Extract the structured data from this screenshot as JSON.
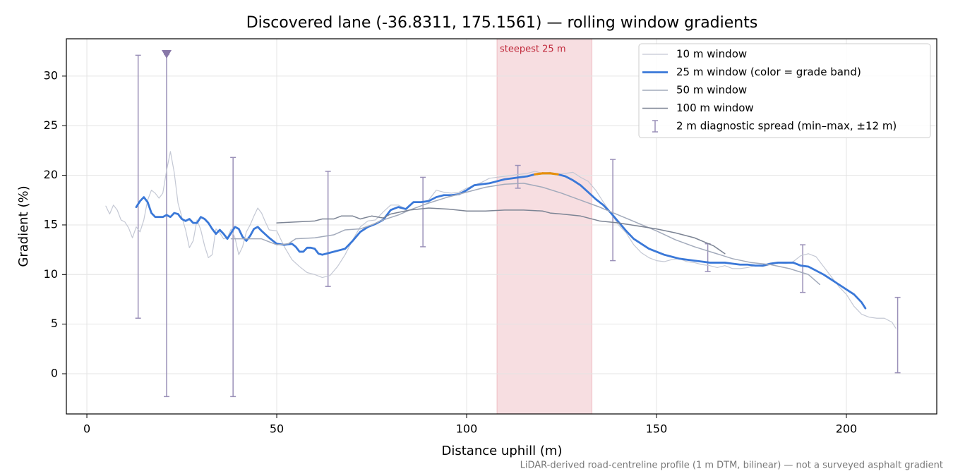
{
  "chart_data": {
    "type": "line",
    "title": "Discovered lane (-36.8311, 175.1561) — rolling window gradients",
    "x_label": "Distance uphill (m)",
    "y_label": "Gradient (%)",
    "footnote": "LiDAR-derived road-centreline profile (1 m DTM, bilinear) — not a surveyed asphalt gradient",
    "xlim": [
      -5.4,
      223.8
    ],
    "ylim": [
      -4.05,
      33.76
    ],
    "xticks": [
      0,
      50,
      100,
      150,
      200
    ],
    "yticks": [
      0,
      5,
      10,
      15,
      20,
      25,
      30
    ],
    "grid": true,
    "legend": "upper right",
    "highlight_span": {
      "label": "steepest 25 m",
      "x": [
        108,
        133
      ],
      "color": "#e8a0a8",
      "label_color": "#c0283a"
    },
    "series": [
      {
        "name": "10 m window",
        "color": "#c4c8d4",
        "width": 1.2,
        "x": [
          5,
          6,
          7,
          8,
          9,
          10,
          11,
          12,
          13,
          14,
          15,
          16,
          17,
          18,
          19,
          20,
          21,
          22,
          23,
          24,
          25,
          26,
          27,
          28,
          29,
          30,
          31,
          32,
          33,
          34,
          35,
          36,
          37,
          38,
          39,
          40,
          41,
          42,
          43,
          44,
          45,
          46,
          47,
          48,
          50,
          52,
          54,
          56,
          58,
          60,
          62,
          64,
          66,
          68,
          70,
          72,
          74,
          76,
          78,
          80,
          82,
          84,
          86,
          88,
          90,
          92,
          94,
          96,
          98,
          100,
          102,
          104,
          106,
          108,
          110,
          112,
          114,
          116,
          118,
          120,
          122,
          124,
          126,
          128,
          130,
          132,
          134,
          136,
          138,
          140,
          142,
          144,
          146,
          148,
          150,
          152,
          154,
          156,
          158,
          160,
          162,
          164,
          166,
          168,
          170,
          172,
          174,
          176,
          178,
          180,
          182,
          184,
          186,
          188,
          190,
          192,
          194,
          196,
          198,
          200,
          202,
          204,
          206,
          208,
          210,
          212,
          213
        ],
        "values": [
          16.9,
          16.1,
          17.0,
          16.5,
          15.5,
          15.3,
          14.7,
          13.7,
          14.8,
          14.3,
          15.5,
          17.5,
          18.5,
          18.2,
          17.7,
          18.2,
          20.5,
          22.4,
          20.3,
          17.2,
          15.8,
          14.5,
          12.7,
          13.4,
          15.5,
          14.5,
          12.9,
          11.7,
          12.0,
          14.6,
          14.2,
          13.6,
          13.7,
          14.6,
          13.7,
          12.0,
          12.8,
          14.3,
          15.0,
          15.9,
          16.7,
          16.2,
          15.3,
          14.5,
          14.4,
          12.8,
          11.5,
          10.8,
          10.2,
          10.0,
          9.7,
          9.9,
          10.8,
          12.0,
          13.5,
          14.8,
          15.4,
          15.5,
          16.3,
          17.0,
          17.0,
          16.6,
          17.3,
          17.3,
          17.5,
          18.5,
          18.3,
          18.2,
          18.3,
          18.7,
          19.0,
          19.3,
          19.7,
          19.8,
          19.9,
          20.0,
          20.1,
          20.2,
          20.4,
          20.2,
          20.3,
          20.1,
          20.2,
          20.3,
          19.8,
          19.4,
          18.5,
          17.3,
          16.2,
          15.0,
          14.2,
          13.0,
          12.2,
          11.7,
          11.4,
          11.3,
          11.5,
          11.6,
          11.3,
          11.2,
          11.0,
          10.9,
          10.7,
          10.9,
          10.6,
          10.6,
          10.7,
          10.9,
          10.8,
          11.0,
          11.2,
          11.1,
          11.3,
          11.9,
          12.1,
          11.8,
          10.8,
          9.8,
          8.8,
          8.0,
          6.8,
          6.0,
          5.7,
          5.6,
          5.6,
          5.2,
          4.6
        ]
      },
      {
        "name": "25 m window (color = grade band)",
        "color": "#3a78d8",
        "width": 2.8,
        "grade_band": {
          "min": 20,
          "color": "#e8900c"
        },
        "x": [
          13,
          14,
          15,
          16,
          17,
          18,
          19,
          20,
          21,
          22,
          23,
          24,
          25,
          26,
          27,
          28,
          29,
          30,
          31,
          32,
          33,
          34,
          35,
          36,
          37,
          38,
          39,
          40,
          41,
          42,
          43,
          44,
          45,
          46,
          48,
          50,
          52,
          54,
          55,
          56,
          57,
          58,
          59,
          60,
          61,
          62,
          64,
          66,
          68,
          70,
          72,
          74,
          76,
          78,
          80,
          82,
          84,
          86,
          88,
          90,
          92,
          94,
          96,
          98,
          100,
          102,
          104,
          106,
          108,
          110,
          112,
          114,
          116,
          118,
          120,
          122,
          124,
          126,
          128,
          130,
          132,
          134,
          136,
          138,
          140,
          142,
          144,
          146,
          148,
          150,
          152,
          154,
          156,
          158,
          160,
          162,
          164,
          166,
          168,
          170,
          172,
          174,
          176,
          178,
          180,
          182,
          184,
          186,
          188,
          190,
          192,
          194,
          196,
          198,
          200,
          202,
          204,
          205
        ],
        "values": [
          16.8,
          17.4,
          17.8,
          17.3,
          16.2,
          15.8,
          15.8,
          15.8,
          16.0,
          15.8,
          16.2,
          16.1,
          15.6,
          15.4,
          15.6,
          15.2,
          15.2,
          15.8,
          15.6,
          15.2,
          14.6,
          14.1,
          14.5,
          14.1,
          13.6,
          14.2,
          14.8,
          14.6,
          13.8,
          13.4,
          13.9,
          14.6,
          14.8,
          14.4,
          13.7,
          13.1,
          13.0,
          13.1,
          12.8,
          12.3,
          12.3,
          12.7,
          12.7,
          12.6,
          12.1,
          12.0,
          12.2,
          12.4,
          12.6,
          13.4,
          14.3,
          14.8,
          15.1,
          15.5,
          16.5,
          16.8,
          16.6,
          17.3,
          17.3,
          17.4,
          17.8,
          18.0,
          18.0,
          18.1,
          18.5,
          19.0,
          19.1,
          19.2,
          19.4,
          19.6,
          19.7,
          19.8,
          19.9,
          20.1,
          20.2,
          20.2,
          20.1,
          19.9,
          19.5,
          19.0,
          18.3,
          17.6,
          17.0,
          16.2,
          15.3,
          14.4,
          13.6,
          13.1,
          12.6,
          12.3,
          12.0,
          11.8,
          11.6,
          11.5,
          11.4,
          11.3,
          11.2,
          11.2,
          11.2,
          11.1,
          11.0,
          11.0,
          10.9,
          10.9,
          11.1,
          11.2,
          11.2,
          11.2,
          10.9,
          10.8,
          10.4,
          10.0,
          9.5,
          9.0,
          8.5,
          8.0,
          7.2,
          6.6
        ]
      },
      {
        "name": "50 m window",
        "color": "#a2aabb",
        "width": 1.5,
        "x": [
          38,
          42,
          46,
          50,
          53,
          55,
          60,
          65,
          68,
          72,
          75,
          78,
          82,
          85,
          90,
          95,
          100,
          105,
          110,
          115,
          120,
          125,
          130,
          135,
          140,
          145,
          150,
          155,
          160,
          165,
          170,
          175,
          180,
          185,
          190,
          193
        ],
        "values": [
          13.6,
          13.6,
          13.6,
          13.0,
          13.1,
          13.6,
          13.7,
          14.0,
          14.5,
          14.6,
          15.0,
          15.5,
          16.0,
          16.5,
          17.2,
          17.8,
          18.3,
          18.8,
          19.1,
          19.2,
          18.8,
          18.2,
          17.5,
          16.8,
          16.0,
          15.2,
          14.4,
          13.5,
          12.8,
          12.2,
          11.6,
          11.2,
          11.0,
          10.6,
          10.0,
          9.0
        ]
      },
      {
        "name": "100 m window",
        "color": "#7c8494",
        "width": 1.5,
        "x": [
          50,
          55,
          60,
          62,
          65,
          67,
          70,
          72,
          75,
          78,
          80,
          85,
          90,
          95,
          100,
          105,
          110,
          115,
          120,
          122,
          125,
          130,
          135,
          140,
          145,
          150,
          155,
          160,
          165,
          168
        ],
        "values": [
          15.2,
          15.3,
          15.4,
          15.6,
          15.6,
          15.9,
          15.9,
          15.6,
          15.9,
          15.7,
          16.1,
          16.5,
          16.7,
          16.6,
          16.4,
          16.4,
          16.5,
          16.5,
          16.4,
          16.2,
          16.1,
          15.9,
          15.4,
          15.2,
          14.9,
          14.6,
          14.2,
          13.7,
          12.9,
          12.1
        ]
      }
    ],
    "errorbars": {
      "name": "2 m diagnostic spread (min–max, ±12 m)",
      "color": "#9a90b8",
      "x": [
        13.5,
        21,
        38.5,
        63.5,
        88.5,
        113.5,
        138.5,
        163.5,
        188.5,
        213.5
      ],
      "low": [
        5.6,
        -2.3,
        -2.3,
        8.8,
        12.8,
        18.7,
        11.4,
        10.3,
        8.2,
        0.1
      ],
      "high": [
        32.1,
        32.2,
        21.8,
        20.4,
        19.8,
        21.0,
        21.6,
        13.1,
        13.0,
        7.7
      ]
    },
    "outlier_marker": {
      "x": 21,
      "y": 32.2,
      "color": "#8878a8"
    }
  }
}
